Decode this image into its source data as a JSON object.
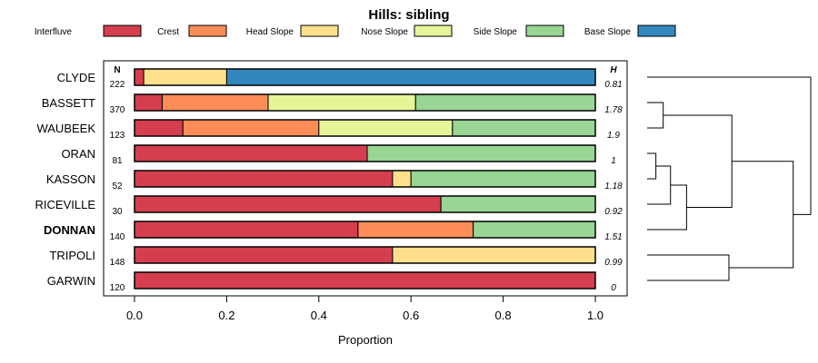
{
  "chart_data": {
    "type": "bar",
    "orientation": "horizontal",
    "stacked": true,
    "title": "Hills: sibling",
    "xlabel": "Proportion",
    "xlim": [
      0,
      1
    ],
    "xticks": [
      "0.0",
      "0.2",
      "0.4",
      "0.6",
      "0.8",
      "1.0"
    ],
    "n_header": "N",
    "h_header": "H",
    "legend": [
      {
        "name": "Interfluve",
        "color": "#D53E4F"
      },
      {
        "name": "Crest",
        "color": "#FC8D59"
      },
      {
        "name": "Head Slope",
        "color": "#FEE08B"
      },
      {
        "name": "Nose Slope",
        "color": "#E6F598"
      },
      {
        "name": "Side Slope",
        "color": "#99D594"
      },
      {
        "name": "Base Slope",
        "color": "#3288BD"
      }
    ],
    "rows": [
      {
        "label": "CLYDE",
        "n": "222",
        "h": "0.81",
        "bold": false,
        "values": [
          0.02,
          0,
          0.18,
          0,
          0,
          0.8
        ]
      },
      {
        "label": "BASSETT",
        "n": "370",
        "h": "1.78",
        "bold": false,
        "values": [
          0.06,
          0.23,
          0,
          0.32,
          0.39,
          0
        ]
      },
      {
        "label": "WAUBEEK",
        "n": "123",
        "h": "1.9",
        "bold": false,
        "values": [
          0.105,
          0.295,
          0,
          0.29,
          0.31,
          0
        ]
      },
      {
        "label": "ORAN",
        "n": "81",
        "h": "1",
        "bold": false,
        "values": [
          0.505,
          0,
          0,
          0,
          0.495,
          0
        ]
      },
      {
        "label": "KASSON",
        "n": "52",
        "h": "1.18",
        "bold": false,
        "values": [
          0.56,
          0,
          0.04,
          0,
          0.4,
          0
        ]
      },
      {
        "label": "RICEVILLE",
        "n": "30",
        "h": "0.92",
        "bold": false,
        "values": [
          0.665,
          0,
          0,
          0,
          0.335,
          0
        ]
      },
      {
        "label": "DONNAN",
        "n": "140",
        "h": "1.51",
        "bold": true,
        "values": [
          0.485,
          0.25,
          0,
          0,
          0.265,
          0
        ]
      },
      {
        "label": "TRIPOLI",
        "n": "148",
        "h": "0.99",
        "bold": false,
        "values": [
          0.56,
          0,
          0.44,
          0,
          0,
          0
        ]
      },
      {
        "label": "GARWIN",
        "n": "120",
        "h": "0",
        "bold": false,
        "values": [
          1.0,
          0,
          0,
          0,
          0,
          0
        ]
      }
    ],
    "dendrogram": {
      "description": "hierarchical clustering of profiles",
      "merges": [
        {
          "left": "BASSETT",
          "right": "WAUBEEK",
          "height": 0.11
        },
        {
          "left": "ORAN",
          "right": "KASSON",
          "height": 0.06
        },
        {
          "left": "merge2",
          "right": "RICEVILLE",
          "height": 0.16
        },
        {
          "left": "merge3",
          "right": "DONNAN",
          "height": 0.27
        },
        {
          "left": "merge1",
          "right": "merge4",
          "height": 0.58
        },
        {
          "left": "TRIPOLI",
          "right": "GARWIN",
          "height": 0.56
        },
        {
          "left": "merge5",
          "right": "merge6",
          "height": 1.0
        },
        {
          "left": "CLYDE",
          "right": "merge7",
          "height": 1.12
        }
      ]
    }
  }
}
